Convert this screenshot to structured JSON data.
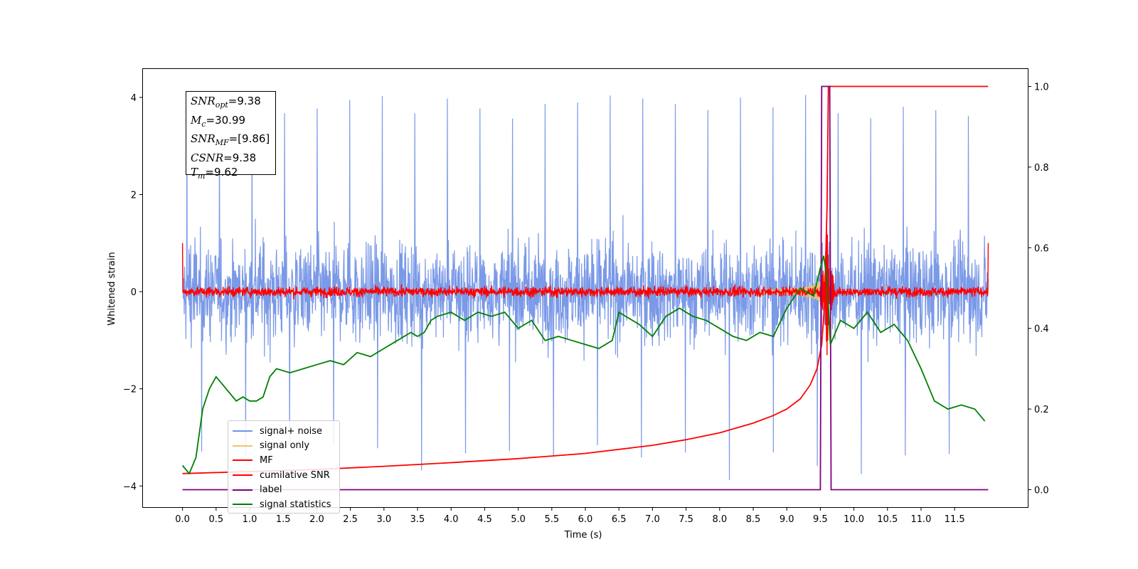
{
  "chart_data": {
    "type": "line",
    "xlabel": "Time (s)",
    "ylabel": "Whitened strain",
    "xlim": [
      -0.6,
      12.6
    ],
    "ylim": [
      -4.45,
      4.6
    ],
    "y2lim": [
      -0.045,
      1.045
    ],
    "x_ticks": [
      0.0,
      0.5,
      1.0,
      1.5,
      2.0,
      2.5,
      3.0,
      3.5,
      4.0,
      4.5,
      5.0,
      5.5,
      6.0,
      6.5,
      7.0,
      7.5,
      8.0,
      8.5,
      9.0,
      9.5,
      10.0,
      10.5,
      11.0,
      11.5
    ],
    "x_tick_labels": [
      "0.0",
      "0.5",
      "1.0",
      "1.5",
      "2.0",
      "2.5",
      "3.0",
      "3.5",
      "4.0",
      "4.5",
      "5.0",
      "5.5",
      "6.0",
      "6.5",
      "7.0",
      "7.5",
      "8.0",
      "8.5",
      "9.0",
      "9.5",
      "10.0",
      "10.5",
      "11.0",
      "11.5"
    ],
    "y_ticks": [
      -4,
      -2,
      0,
      2,
      4
    ],
    "y_tick_labels": [
      "−4",
      "−2",
      "0",
      "2",
      "4"
    ],
    "y2_ticks": [
      0.0,
      0.2,
      0.4,
      0.6,
      0.8,
      1.0
    ],
    "y2_tick_labels": [
      "0.0",
      "0.2",
      "0.4",
      "0.6",
      "0.8",
      "1.0"
    ],
    "legend_position": "lower-left",
    "grid": false,
    "annotation": {
      "snr_opt": "=9.38",
      "mc": "=30.99",
      "snr_mf": "=[9.86]",
      "csnr": "=9.38",
      "tm": "=9.62"
    },
    "series": [
      {
        "name": "signal+ noise",
        "axis": "left",
        "color": "#7393e6",
        "kind": "noise",
        "t_range": [
          0.0,
          12.0
        ],
        "spread": 1.0,
        "peaks": [
          4.15,
          -3.9
        ]
      },
      {
        "name": "signal only",
        "axis": "left",
        "color": "#f5c26b",
        "kind": "chirp",
        "merger_time": 9.62,
        "peak_amplitude": 1.0
      },
      {
        "name": "MF",
        "axis": "left",
        "color": "#ff0000",
        "kind": "mf",
        "t_range": [
          0.0,
          12.0
        ],
        "spread": 0.1,
        "merger_time": 9.6,
        "peak": 1.35
      },
      {
        "name": "cumilative SNR",
        "axis": "right",
        "color": "#ff0000",
        "t": [
          0.0,
          1.0,
          2.0,
          3.0,
          4.0,
          5.0,
          6.0,
          7.0,
          7.5,
          8.0,
          8.5,
          8.8,
          9.0,
          9.2,
          9.35,
          9.45,
          9.52,
          9.56,
          9.6,
          9.62,
          9.65,
          12.0
        ],
        "values": [
          0.04,
          0.045,
          0.05,
          0.058,
          0.067,
          0.077,
          0.09,
          0.11,
          0.124,
          0.141,
          0.165,
          0.184,
          0.2,
          0.225,
          0.26,
          0.3,
          0.36,
          0.45,
          0.7,
          1.0,
          1.0,
          1.0
        ]
      },
      {
        "name": "label",
        "axis": "right",
        "color": "#800080",
        "t": [
          0.0,
          9.5,
          9.52,
          9.64,
          9.66,
          12.0
        ],
        "values": [
          0.0,
          0.0,
          1.0,
          1.0,
          0.0,
          0.0
        ]
      },
      {
        "name": "signal statistics",
        "axis": "right",
        "color": "#008000",
        "t": [
          0.0,
          0.1,
          0.2,
          0.3,
          0.4,
          0.5,
          0.6,
          0.7,
          0.8,
          0.9,
          1.0,
          1.1,
          1.2,
          1.3,
          1.4,
          1.6,
          1.8,
          2.0,
          2.2,
          2.4,
          2.6,
          2.8,
          3.0,
          3.2,
          3.4,
          3.5,
          3.6,
          3.7,
          3.8,
          4.0,
          4.2,
          4.4,
          4.6,
          4.8,
          5.0,
          5.2,
          5.4,
          5.6,
          5.8,
          6.0,
          6.2,
          6.4,
          6.5,
          6.6,
          6.8,
          7.0,
          7.2,
          7.4,
          7.6,
          7.8,
          8.0,
          8.2,
          8.4,
          8.6,
          8.8,
          9.0,
          9.2,
          9.4,
          9.5,
          9.55,
          9.6,
          9.65,
          9.7,
          9.8,
          10.0,
          10.2,
          10.4,
          10.6,
          10.8,
          11.0,
          11.2,
          11.4,
          11.6,
          11.8,
          11.95
        ],
        "values": [
          0.06,
          0.04,
          0.08,
          0.2,
          0.25,
          0.28,
          0.26,
          0.24,
          0.22,
          0.23,
          0.22,
          0.22,
          0.23,
          0.28,
          0.3,
          0.29,
          0.3,
          0.31,
          0.32,
          0.31,
          0.34,
          0.33,
          0.35,
          0.37,
          0.39,
          0.38,
          0.39,
          0.42,
          0.43,
          0.44,
          0.42,
          0.44,
          0.43,
          0.44,
          0.4,
          0.42,
          0.37,
          0.38,
          0.37,
          0.36,
          0.35,
          0.37,
          0.44,
          0.43,
          0.41,
          0.38,
          0.43,
          0.45,
          0.43,
          0.42,
          0.4,
          0.38,
          0.37,
          0.39,
          0.38,
          0.45,
          0.5,
          0.48,
          0.55,
          0.58,
          0.52,
          0.36,
          0.38,
          0.42,
          0.4,
          0.44,
          0.39,
          0.41,
          0.37,
          0.3,
          0.22,
          0.2,
          0.21,
          0.2,
          0.17
        ]
      }
    ]
  }
}
